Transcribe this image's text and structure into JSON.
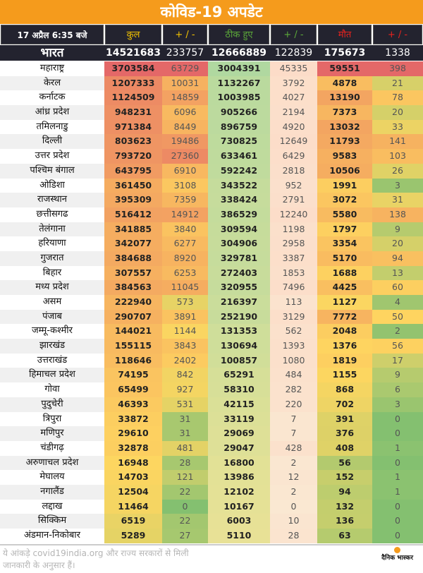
{
  "title": "कोविड-19 अपडेट",
  "header": {
    "date": "17 अप्रैल 6:35 बजे",
    "total": "कुल",
    "change1": "+ / -",
    "recovered": "ठीक हुए",
    "change2": "+ / -",
    "deaths": "मौत",
    "change3": "+ / -",
    "colors": {
      "total": "#f5c400",
      "recovered": "#5caa3a",
      "deaths": "#e8231e"
    }
  },
  "india": {
    "name": "भारत",
    "total": "14521683",
    "total_change": "233757",
    "recovered": "12666889",
    "recovered_change": "122839",
    "deaths": "175673",
    "deaths_change": "1338"
  },
  "states": [
    [
      "महाराष्ट्र",
      3703584,
      63729,
      3004391,
      45335,
      59551,
      398
    ],
    [
      "केरल",
      1207333,
      10031,
      1132267,
      3792,
      4878,
      21
    ],
    [
      "कर्नाटक",
      1124509,
      14859,
      1003985,
      4027,
      13190,
      78
    ],
    [
      "आंध्र प्रदेश",
      948231,
      6096,
      905266,
      2194,
      7373,
      20
    ],
    [
      "तमिलनाडु",
      971384,
      8449,
      896759,
      4920,
      13032,
      33
    ],
    [
      "दिल्ली",
      803623,
      19486,
      730825,
      12649,
      11793,
      141
    ],
    [
      "उत्तर प्रदेश",
      793720,
      27360,
      633461,
      6429,
      9583,
      103
    ],
    [
      "पश्चिम बंगाल",
      643795,
      6910,
      592242,
      2818,
      10506,
      26
    ],
    [
      "ओडिशा",
      361450,
      3108,
      343522,
      952,
      1991,
      3
    ],
    [
      "राजस्थान",
      395309,
      7359,
      338424,
      2791,
      3072,
      31
    ],
    [
      "छत्तीसगढ",
      516412,
      14912,
      386529,
      12240,
      5580,
      138
    ],
    [
      "तेलंगाना",
      341885,
      3840,
      309594,
      1198,
      1797,
      9
    ],
    [
      "हरियाणा",
      342077,
      6277,
      304906,
      2958,
      3354,
      20
    ],
    [
      "गुजरात",
      384688,
      8920,
      329781,
      3387,
      5170,
      94
    ],
    [
      "बिहार",
      307557,
      6253,
      272403,
      1853,
      1688,
      13
    ],
    [
      "मध्य प्रदेश",
      384563,
      11045,
      320955,
      7496,
      4425,
      60
    ],
    [
      "असम",
      222940,
      573,
      216397,
      113,
      1127,
      4
    ],
    [
      "पंजाब",
      290707,
      3891,
      252190,
      3129,
      7772,
      50
    ],
    [
      "जम्मू-कश्मीर",
      144021,
      1144,
      131353,
      562,
      2048,
      2
    ],
    [
      "झारखंड",
      155115,
      3843,
      130694,
      1393,
      1376,
      56
    ],
    [
      "उत्तराखंड",
      118646,
      2402,
      100857,
      1080,
      1819,
      17
    ],
    [
      "हिमाचल प्रदेश",
      74195,
      842,
      65291,
      484,
      1155,
      9
    ],
    [
      "गोवा",
      65499,
      927,
      58310,
      282,
      868,
      6
    ],
    [
      "पुदुचेरी",
      46393,
      531,
      42115,
      220,
      702,
      3
    ],
    [
      "त्रिपुरा",
      33872,
      31,
      33119,
      7,
      391,
      0
    ],
    [
      "मणिपुर",
      29610,
      31,
      29069,
      7,
      376,
      0
    ],
    [
      "चंडीगढ़",
      32878,
      481,
      29047,
      428,
      408,
      1
    ],
    [
      "अरुणाचल प्रदेश",
      16948,
      28,
      16800,
      2,
      56,
      0
    ],
    [
      "मेघालय",
      14703,
      121,
      13986,
      12,
      152,
      1
    ],
    [
      "नगालैंड",
      12504,
      22,
      12102,
      2,
      94,
      1
    ],
    [
      "लद्दाख",
      11464,
      0,
      10167,
      0,
      132,
      0
    ],
    [
      "सिक्किम",
      6519,
      22,
      6003,
      10,
      136,
      0
    ],
    [
      "अंडमान-निकोबार",
      5289,
      27,
      5110,
      28,
      63,
      0
    ]
  ],
  "footer": {
    "note": "ये आंकड़े covid19india.org और राज्य सरकारों से मिली जानकारी के अनुसार हैं।",
    "logo": "दैनिक भास्कर"
  }
}
